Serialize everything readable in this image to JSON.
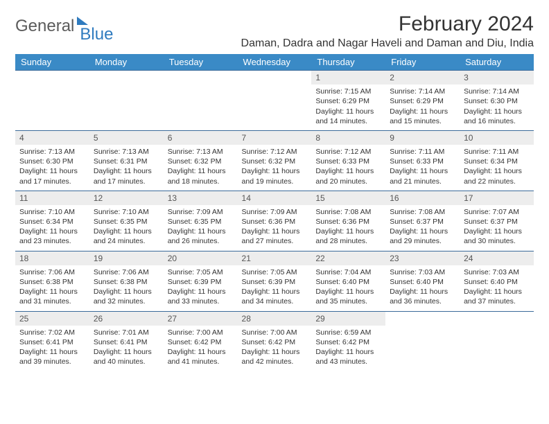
{
  "brand": {
    "word1": "General",
    "word2": "Blue"
  },
  "title": "February 2024",
  "location": "Daman, Dadra and Nagar Haveli and Daman and Diu, India",
  "colors": {
    "header_bg": "#3a8ac6",
    "header_text": "#ffffff",
    "row_border": "#3a6a9a",
    "daynum_bg": "#ededed",
    "text": "#333333",
    "logo_gray": "#5b5b5b",
    "logo_blue": "#2f7bbf",
    "page_bg": "#ffffff"
  },
  "day_names": [
    "Sunday",
    "Monday",
    "Tuesday",
    "Wednesday",
    "Thursday",
    "Friday",
    "Saturday"
  ],
  "weeks": [
    [
      null,
      null,
      null,
      null,
      {
        "n": "1",
        "sr": "Sunrise: 7:15 AM",
        "ss": "Sunset: 6:29 PM",
        "d1": "Daylight: 11 hours",
        "d2": "and 14 minutes."
      },
      {
        "n": "2",
        "sr": "Sunrise: 7:14 AM",
        "ss": "Sunset: 6:29 PM",
        "d1": "Daylight: 11 hours",
        "d2": "and 15 minutes."
      },
      {
        "n": "3",
        "sr": "Sunrise: 7:14 AM",
        "ss": "Sunset: 6:30 PM",
        "d1": "Daylight: 11 hours",
        "d2": "and 16 minutes."
      }
    ],
    [
      {
        "n": "4",
        "sr": "Sunrise: 7:13 AM",
        "ss": "Sunset: 6:30 PM",
        "d1": "Daylight: 11 hours",
        "d2": "and 17 minutes."
      },
      {
        "n": "5",
        "sr": "Sunrise: 7:13 AM",
        "ss": "Sunset: 6:31 PM",
        "d1": "Daylight: 11 hours",
        "d2": "and 17 minutes."
      },
      {
        "n": "6",
        "sr": "Sunrise: 7:13 AM",
        "ss": "Sunset: 6:32 PM",
        "d1": "Daylight: 11 hours",
        "d2": "and 18 minutes."
      },
      {
        "n": "7",
        "sr": "Sunrise: 7:12 AM",
        "ss": "Sunset: 6:32 PM",
        "d1": "Daylight: 11 hours",
        "d2": "and 19 minutes."
      },
      {
        "n": "8",
        "sr": "Sunrise: 7:12 AM",
        "ss": "Sunset: 6:33 PM",
        "d1": "Daylight: 11 hours",
        "d2": "and 20 minutes."
      },
      {
        "n": "9",
        "sr": "Sunrise: 7:11 AM",
        "ss": "Sunset: 6:33 PM",
        "d1": "Daylight: 11 hours",
        "d2": "and 21 minutes."
      },
      {
        "n": "10",
        "sr": "Sunrise: 7:11 AM",
        "ss": "Sunset: 6:34 PM",
        "d1": "Daylight: 11 hours",
        "d2": "and 22 minutes."
      }
    ],
    [
      {
        "n": "11",
        "sr": "Sunrise: 7:10 AM",
        "ss": "Sunset: 6:34 PM",
        "d1": "Daylight: 11 hours",
        "d2": "and 23 minutes."
      },
      {
        "n": "12",
        "sr": "Sunrise: 7:10 AM",
        "ss": "Sunset: 6:35 PM",
        "d1": "Daylight: 11 hours",
        "d2": "and 24 minutes."
      },
      {
        "n": "13",
        "sr": "Sunrise: 7:09 AM",
        "ss": "Sunset: 6:35 PM",
        "d1": "Daylight: 11 hours",
        "d2": "and 26 minutes."
      },
      {
        "n": "14",
        "sr": "Sunrise: 7:09 AM",
        "ss": "Sunset: 6:36 PM",
        "d1": "Daylight: 11 hours",
        "d2": "and 27 minutes."
      },
      {
        "n": "15",
        "sr": "Sunrise: 7:08 AM",
        "ss": "Sunset: 6:36 PM",
        "d1": "Daylight: 11 hours",
        "d2": "and 28 minutes."
      },
      {
        "n": "16",
        "sr": "Sunrise: 7:08 AM",
        "ss": "Sunset: 6:37 PM",
        "d1": "Daylight: 11 hours",
        "d2": "and 29 minutes."
      },
      {
        "n": "17",
        "sr": "Sunrise: 7:07 AM",
        "ss": "Sunset: 6:37 PM",
        "d1": "Daylight: 11 hours",
        "d2": "and 30 minutes."
      }
    ],
    [
      {
        "n": "18",
        "sr": "Sunrise: 7:06 AM",
        "ss": "Sunset: 6:38 PM",
        "d1": "Daylight: 11 hours",
        "d2": "and 31 minutes."
      },
      {
        "n": "19",
        "sr": "Sunrise: 7:06 AM",
        "ss": "Sunset: 6:38 PM",
        "d1": "Daylight: 11 hours",
        "d2": "and 32 minutes."
      },
      {
        "n": "20",
        "sr": "Sunrise: 7:05 AM",
        "ss": "Sunset: 6:39 PM",
        "d1": "Daylight: 11 hours",
        "d2": "and 33 minutes."
      },
      {
        "n": "21",
        "sr": "Sunrise: 7:05 AM",
        "ss": "Sunset: 6:39 PM",
        "d1": "Daylight: 11 hours",
        "d2": "and 34 minutes."
      },
      {
        "n": "22",
        "sr": "Sunrise: 7:04 AM",
        "ss": "Sunset: 6:40 PM",
        "d1": "Daylight: 11 hours",
        "d2": "and 35 minutes."
      },
      {
        "n": "23",
        "sr": "Sunrise: 7:03 AM",
        "ss": "Sunset: 6:40 PM",
        "d1": "Daylight: 11 hours",
        "d2": "and 36 minutes."
      },
      {
        "n": "24",
        "sr": "Sunrise: 7:03 AM",
        "ss": "Sunset: 6:40 PM",
        "d1": "Daylight: 11 hours",
        "d2": "and 37 minutes."
      }
    ],
    [
      {
        "n": "25",
        "sr": "Sunrise: 7:02 AM",
        "ss": "Sunset: 6:41 PM",
        "d1": "Daylight: 11 hours",
        "d2": "and 39 minutes."
      },
      {
        "n": "26",
        "sr": "Sunrise: 7:01 AM",
        "ss": "Sunset: 6:41 PM",
        "d1": "Daylight: 11 hours",
        "d2": "and 40 minutes."
      },
      {
        "n": "27",
        "sr": "Sunrise: 7:00 AM",
        "ss": "Sunset: 6:42 PM",
        "d1": "Daylight: 11 hours",
        "d2": "and 41 minutes."
      },
      {
        "n": "28",
        "sr": "Sunrise: 7:00 AM",
        "ss": "Sunset: 6:42 PM",
        "d1": "Daylight: 11 hours",
        "d2": "and 42 minutes."
      },
      {
        "n": "29",
        "sr": "Sunrise: 6:59 AM",
        "ss": "Sunset: 6:42 PM",
        "d1": "Daylight: 11 hours",
        "d2": "and 43 minutes."
      },
      null,
      null
    ]
  ]
}
